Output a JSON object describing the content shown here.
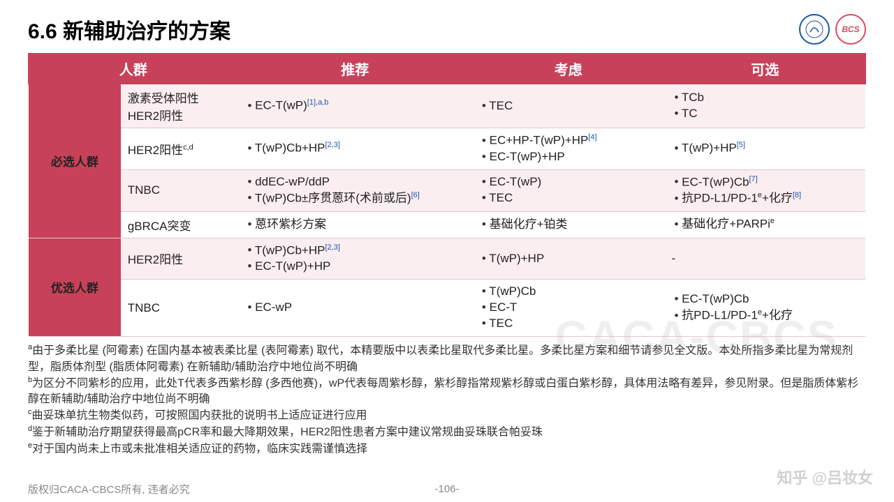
{
  "title": "6.6 新辅助治疗的方案",
  "logos": {
    "left_alt": "CACA",
    "right_text": "BCS"
  },
  "colors": {
    "header_bg": "#c8415a",
    "row_tint": "#fbeef1",
    "link_sup": "#1858a8",
    "text": "#222222",
    "border": "#e6c6cd"
  },
  "table": {
    "col_widths_pct": [
      11,
      14,
      28,
      23,
      24
    ],
    "headers": [
      "人群",
      "推荐",
      "考虑",
      "可选"
    ],
    "groups": [
      {
        "label": "必选人群",
        "rows": [
          {
            "tint": true,
            "sub": "激素受体阳性\nHER2阴性",
            "rec": [
              {
                "t": "EC-T(wP)",
                "sup": "[1],a,b"
              }
            ],
            "cons": [
              {
                "t": "TEC"
              }
            ],
            "opt": [
              {
                "t": "TCb"
              },
              {
                "t": "TC"
              }
            ]
          },
          {
            "sub_html": "HER2阳性<sup class='black'>c,d</sup>",
            "rec": [
              {
                "t": "T(wP)Cb+HP",
                "sup": "[2,3]"
              }
            ],
            "cons": [
              {
                "t": "EC+HP-T(wP)+HP",
                "sup": "[4]"
              },
              {
                "t": "EC-T(wP)+HP"
              }
            ],
            "opt": [
              {
                "t": "T(wP)+HP",
                "sup": "[5]"
              }
            ]
          },
          {
            "tint": true,
            "sub": "TNBC",
            "rec": [
              {
                "t": "ddEC-wP/ddP"
              },
              {
                "t": "T(wP)Cb±序贯蒽环(术前或后)",
                "sup": "[6]"
              }
            ],
            "cons": [
              {
                "t": "EC-T(wP)"
              },
              {
                "t": "TEC"
              }
            ],
            "opt": [
              {
                "t": "EC-T(wP)Cb",
                "sup": "[7]"
              },
              {
                "html": "抗PD-L1/PD-1<sup class='black'>e</sup>+化疗",
                "sup": "[8]"
              }
            ]
          },
          {
            "sub": "gBRCA突变",
            "rec": [
              {
                "t": "蒽环紫杉方案"
              }
            ],
            "cons": [
              {
                "t": "基础化疗+铂类"
              }
            ],
            "opt": [
              {
                "html": "基础化疗+PARPi<sup class='black'>e</sup>"
              }
            ]
          }
        ]
      },
      {
        "label": "优选人群",
        "rows": [
          {
            "tint": true,
            "sub": "HER2阳性",
            "rec": [
              {
                "t": "T(wP)Cb+HP",
                "sup": "[2,3]"
              },
              {
                "t": "EC-T(wP)+HP"
              }
            ],
            "cons": [
              {
                "t": "T(wP)+HP"
              }
            ],
            "opt_plain": "-"
          },
          {
            "sub": "TNBC",
            "rec": [
              {
                "t": "EC-wP"
              }
            ],
            "cons": [
              {
                "t": "T(wP)Cb"
              },
              {
                "t": "EC-T"
              },
              {
                "t": "TEC"
              }
            ],
            "opt": [
              {
                "t": "EC-T(wP)Cb"
              },
              {
                "html": "抗PD-L1/PD-1<sup class='black'>e</sup>+化疗"
              }
            ]
          }
        ]
      }
    ]
  },
  "notes": [
    "a由于多柔比星 (阿霉素) 在国内基本被表柔比星 (表阿霉素) 取代，本精要版中以表柔比星取代多柔比星。多柔比星方案和细节请参见全文版。本处所指多柔比星为常规剂型，脂质体剂型 (脂质体阿霉素) 在新辅助/辅助治疗中地位尚不明确",
    "b为区分不同紫杉的应用，此处T代表多西紫杉醇 (多西他赛)，wP代表每周紫杉醇，紫杉醇指常规紫杉醇或白蛋白紫杉醇，具体用法略有差异，参见附录。但是脂质体紫杉醇在新辅助/辅助治疗中地位尚不明确",
    "c曲妥珠单抗生物类似药，可按照国内获批的说明书上适应证进行应用",
    "d鉴于新辅助治疗期望获得最高pCR率和最大降期效果，HER2阳性患者方案中建议常规曲妥珠联合帕妥珠",
    "e对于国内尚未上市或未批准相关适应证的药物，临床实践需谨慎选择"
  ],
  "watermark": "CACA-CBCS",
  "footer": {
    "left": "版权归CACA-CBCS所有, 违者必究",
    "center": "-106-"
  },
  "zhihu": "知乎 @吕妆女"
}
